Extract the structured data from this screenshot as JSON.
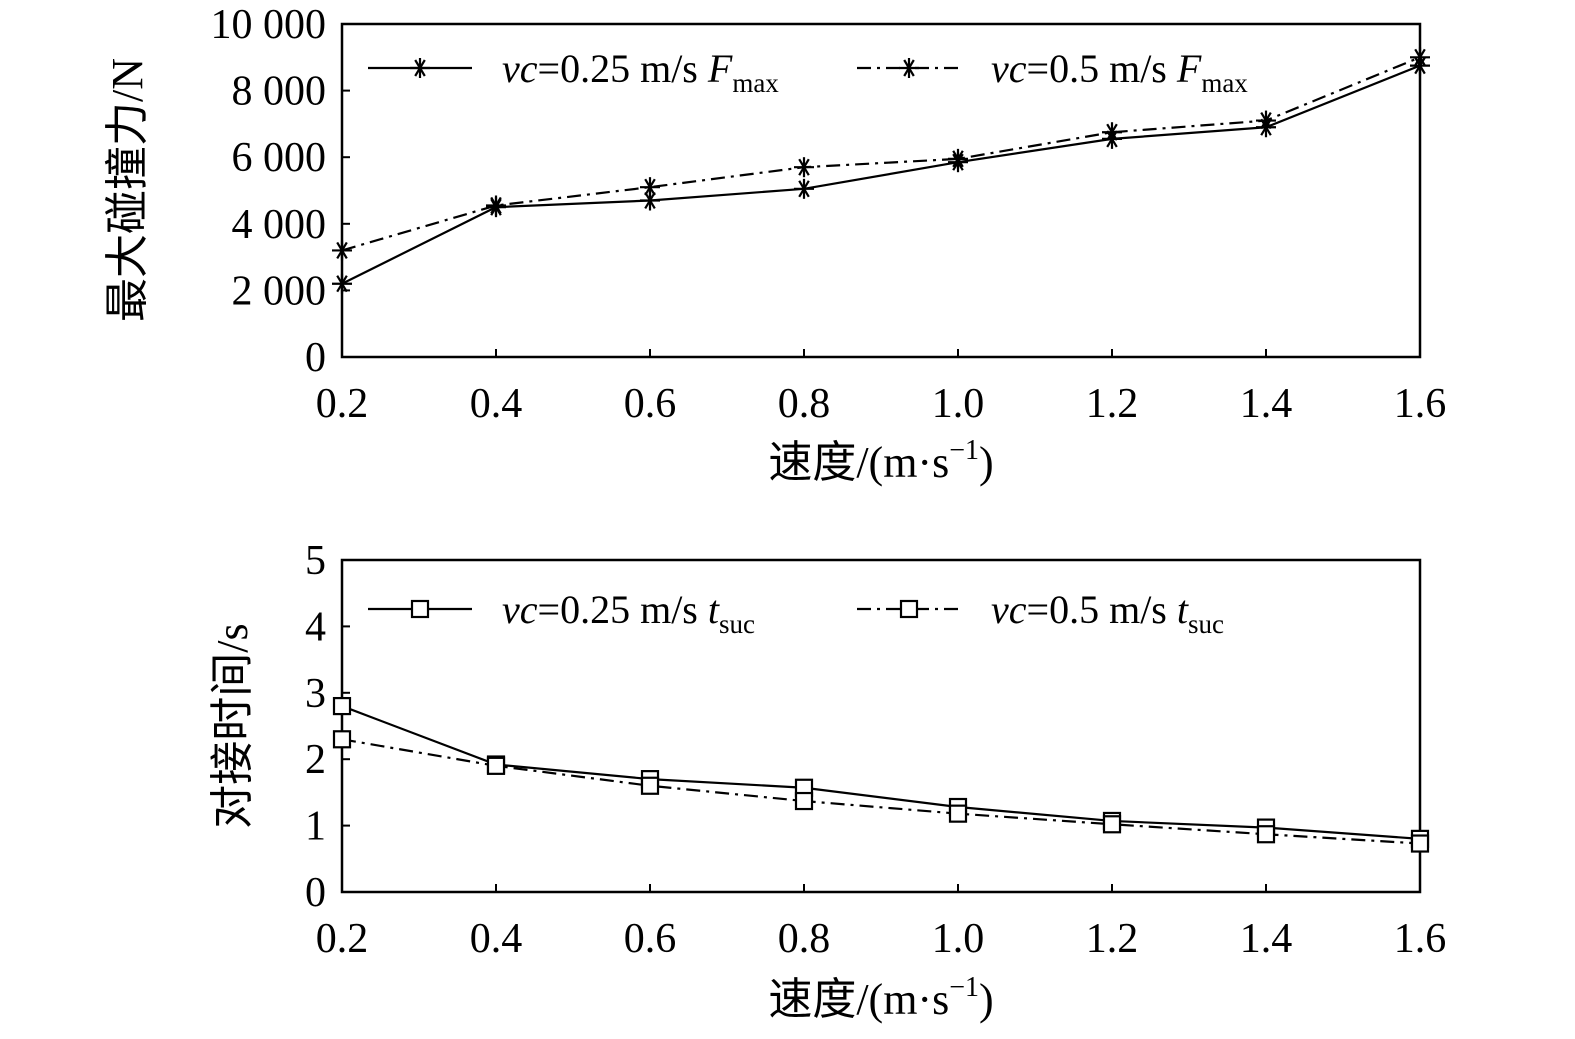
{
  "chart_data": [
    {
      "type": "line",
      "ylabel": "最大碰撞力/N",
      "xlabel": "速度/(m·s",
      "xlabel_sup": "−1",
      "xlabel_end": ")",
      "x": [
        0.2,
        0.4,
        0.6,
        0.8,
        1.0,
        1.2,
        1.4,
        1.6
      ],
      "x_tick_labels": [
        "0.2",
        "0.4",
        "0.6",
        "0.8",
        "1.0",
        "1.2",
        "1.4",
        "1.6"
      ],
      "xlim": [
        0.2,
        1.6
      ],
      "ylim": [
        0,
        10000
      ],
      "y_ticks": [
        0,
        2000,
        4000,
        6000,
        8000,
        10000
      ],
      "y_tick_labels": [
        "0",
        "2 000",
        "4 000",
        "6 000",
        "8 000",
        "10 000"
      ],
      "grid": false,
      "legend_position": "top",
      "series": [
        {
          "name": "vc=0.25 m/s Fmax",
          "legend_italic": "vc",
          "legend_rest": "=0.25 m/s ",
          "legend_sym": "F",
          "legend_sub": "max",
          "line": "solid",
          "marker": "asterisk",
          "values": [
            2200,
            4500,
            4700,
            5050,
            5850,
            6550,
            6900,
            8750
          ]
        },
        {
          "name": "vc=0.5 m/s Fmax",
          "legend_italic": "vc",
          "legend_rest": "=0.5 m/s ",
          "legend_sym": "F",
          "legend_sub": "max",
          "line": "dash-dot",
          "marker": "asterisk",
          "values": [
            3200,
            4550,
            5100,
            5700,
            5950,
            6750,
            7100,
            9000
          ]
        }
      ]
    },
    {
      "type": "line",
      "ylabel": "对接时间/s",
      "xlabel": "速度/(m·s",
      "xlabel_sup": "−1",
      "xlabel_end": ")",
      "x": [
        0.2,
        0.4,
        0.6,
        0.8,
        1.0,
        1.2,
        1.4,
        1.6
      ],
      "x_tick_labels": [
        "0.2",
        "0.4",
        "0.6",
        "0.8",
        "1.0",
        "1.2",
        "1.4",
        "1.6"
      ],
      "xlim": [
        0.2,
        1.6
      ],
      "ylim": [
        0,
        5
      ],
      "y_ticks": [
        0,
        1,
        2,
        3,
        4,
        5
      ],
      "y_tick_labels": [
        "0",
        "1",
        "2",
        "3",
        "4",
        "5"
      ],
      "grid": false,
      "legend_position": "top",
      "series": [
        {
          "name": "vc=0.25 m/s tsuc",
          "legend_italic": "vc",
          "legend_rest": "=0.25 m/s ",
          "legend_sym": "t",
          "legend_sub": "suc",
          "line": "solid",
          "marker": "square",
          "values": [
            2.8,
            1.92,
            1.7,
            1.57,
            1.28,
            1.07,
            0.97,
            0.8
          ]
        },
        {
          "name": "vc=0.5 m/s tsuc",
          "legend_italic": "vc",
          "legend_rest": "=0.5 m/s ",
          "legend_sym": "t",
          "legend_sub": "suc",
          "line": "dash-dot",
          "marker": "square",
          "values": [
            2.3,
            1.9,
            1.6,
            1.37,
            1.18,
            1.02,
            0.87,
            0.73
          ]
        }
      ]
    }
  ]
}
